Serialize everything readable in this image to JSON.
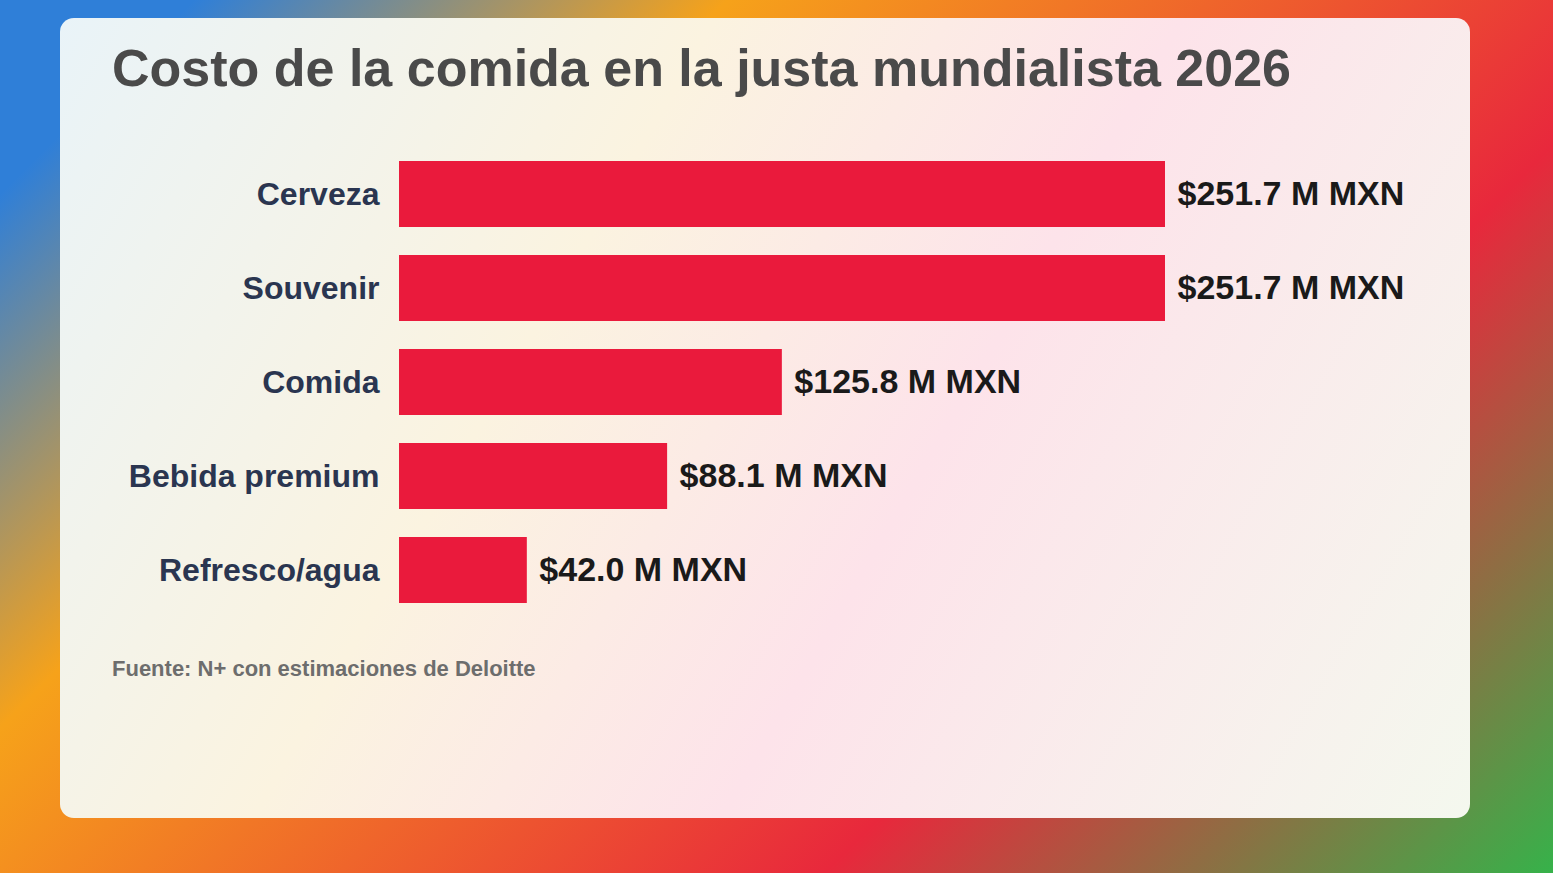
{
  "chart_data": {
    "type": "bar",
    "orientation": "horizontal",
    "title": "Costo de la comida en la justa mundialista 2026",
    "categories": [
      "Cerveza",
      "Souvenir",
      "Comida",
      "Bebida premium",
      "Refresco/agua"
    ],
    "values": [
      251.7,
      251.7,
      125.8,
      88.1,
      42.0
    ],
    "value_labels": [
      "$251.7 M MXN",
      "$251.7 M MXN",
      "$125.8 M MXN",
      "$88.1 M MXN",
      "$42.0 M MXN"
    ],
    "data_labels": true,
    "tick_labels": "y",
    "xlim": [
      0,
      251.7
    ],
    "color": "#ea1a3c",
    "grid": false,
    "source": "Fuente: N+ con estimaciones de Deloitte"
  }
}
